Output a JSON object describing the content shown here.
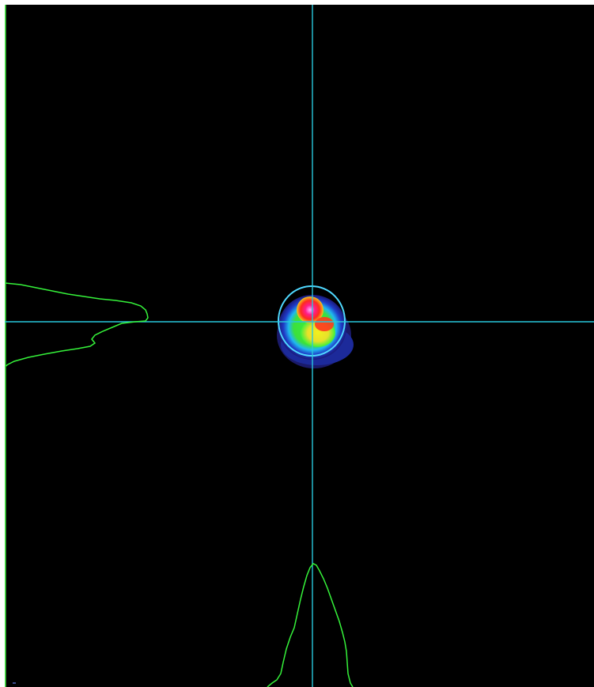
{
  "viewer": {
    "background_color": "#000000",
    "frame_color": "#ffffff",
    "crosshair_color": "#29c8dc",
    "profile_color": "#35f23a",
    "left_border_color": "#4cf04c",
    "fit_ellipse_color": "#4fd8ff"
  },
  "beam_spot": {
    "colormap": [
      "#1a1a7a",
      "#1f3cc8",
      "#1fb8f0",
      "#3cf03c",
      "#f0f01e",
      "#ff3c1e",
      "#ff1e8c",
      "#ffa0ff"
    ],
    "shape": "elliptical spot with fitted circle overlay"
  }
}
